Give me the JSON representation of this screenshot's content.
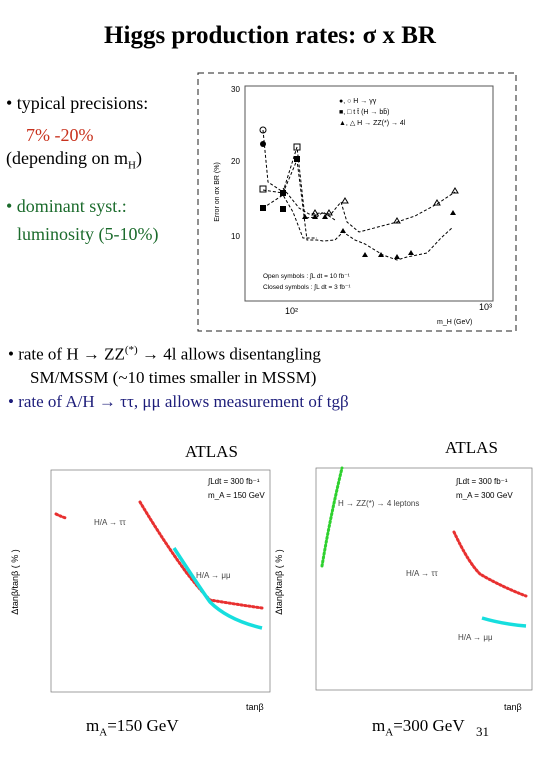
{
  "slide": {
    "title": "Higgs production rates:   σ x BR",
    "page_number": "31"
  },
  "left_column": {
    "precisions_label": "• typical precisions:",
    "precisions_value": "7% -20%",
    "depending_prefix": "(depending on m",
    "depending_sub": "H",
    "depending_suffix": ")",
    "syst_line1": "• dominant syst.:",
    "syst_line2": "luminosity (5-10%)"
  },
  "bullets": {
    "b1_line1_prefix": "•  rate of H → ZZ",
    "b1_line1_sup": "(*)",
    "b1_line1_suffix": " → 4l allows disentangling",
    "b1_line2": "SM/MSSM  (~10 times smaller in MSSM)",
    "b2": "•  rate of A/H → ττ, μμ allows measurement of tgβ"
  },
  "top_plot": {
    "ylabel": "Error on σx BR (%)",
    "xlabel": "m_H (GeV)",
    "legend": [
      "●, ○   H → γγ",
      "■, □   t t̄ (H → bb̄)",
      "▲, △  H → ZZ(*) → 4l"
    ],
    "notes": [
      "Open symbols : ∫L dt = 10 fb⁻¹",
      "Closed symbols : ∫L dt = 3 fb⁻¹"
    ],
    "yticks": [
      "30",
      "20",
      "10"
    ],
    "xticks": [
      "10²",
      "10³"
    ]
  },
  "bottom_left": {
    "label": "ATLAS",
    "ylabel": "Δtanβ/tanβ ( % )",
    "xlabel": "tanβ",
    "lumi": "∫Ldt = 300 fb⁻¹",
    "mass_box": "m_A = 150 GeV",
    "curve_tautau": "H/A → ττ",
    "curve_mumu": "H/A → μμ",
    "caption_prefix": "m",
    "caption_sub": "A",
    "caption_suffix": "=150 GeV"
  },
  "bottom_right": {
    "label": "ATLAS",
    "ylabel": "Δtanβ/tanβ ( % )",
    "xlabel": "tanβ",
    "lumi": "∫Ldt = 300 fb⁻¹",
    "mass_box": "m_A = 300 GeV",
    "curve_zz": "H → ZZ(*) → 4 leptons",
    "curve_tautau": "H/A → ττ",
    "curve_mumu": "H/A → μμ",
    "caption_prefix": "m",
    "caption_sub": "A",
    "caption_suffix": "=300 GeV"
  },
  "colors": {
    "red_text": "#c8321e",
    "green_text": "#1b6b2c",
    "navy_text": "#1d1d7a",
    "cyan_curve": "#16dede",
    "red_dots": "#e83030",
    "green_dots": "#2fd12f"
  }
}
